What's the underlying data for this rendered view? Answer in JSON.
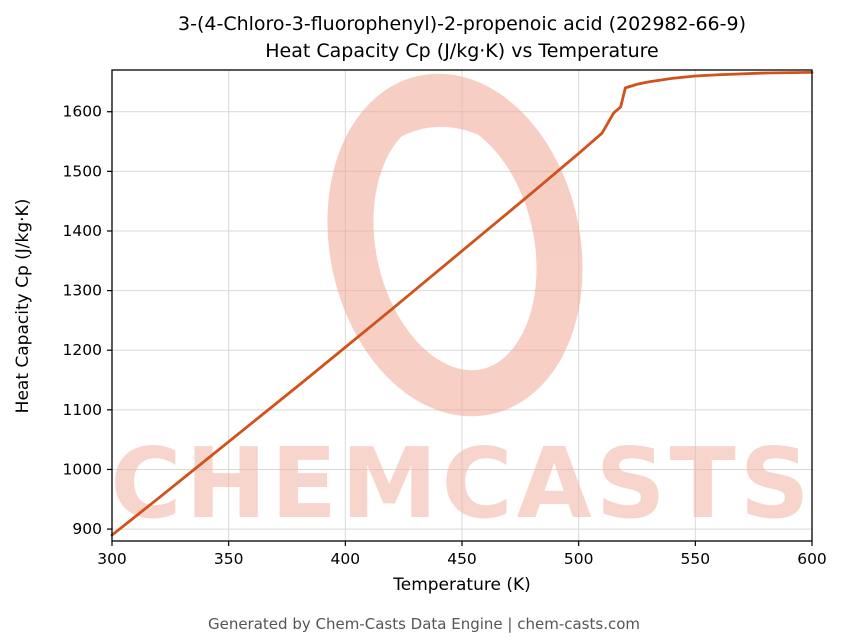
{
  "title": {
    "line1": "3-(4-Chloro-3-fluorophenyl)-2-propenoic acid (202982-66-9)",
    "line2": "Heat Capacity Cp (J/kg·K) vs Temperature"
  },
  "footer": {
    "text": "Generated by Chem-Casts Data Engine | chem-casts.com"
  },
  "watermark": {
    "text": "CHEMCASTS",
    "color": "#f2b4a4",
    "ring_color": "#f0a795"
  },
  "chart_data": {
    "type": "line",
    "title": "3-(4-Chloro-3-fluorophenyl)-2-propenoic acid (202982-66-9) Heat Capacity Cp (J/kg·K) vs Temperature",
    "xlabel": "Temperature (K)",
    "ylabel": "Heat Capacity Cp (J/kg·K)",
    "xlim": [
      300,
      600
    ],
    "ylim": [
      880,
      1670
    ],
    "xticks": [
      300,
      350,
      400,
      450,
      500,
      550,
      600
    ],
    "yticks": [
      900,
      1000,
      1100,
      1200,
      1300,
      1400,
      1500,
      1600
    ],
    "grid": true,
    "grid_color": "#d9d9d9",
    "line_color": "#d2521b",
    "legend": "none",
    "series": [
      {
        "name": "Heat Capacity Cp",
        "x": [
          300,
          320,
          340,
          360,
          380,
          400,
          420,
          440,
          460,
          480,
          500,
          510,
          515,
          518,
          520,
          525,
          530,
          540,
          550,
          560,
          580,
          600
        ],
        "y": [
          890,
          952,
          1015,
          1078,
          1141,
          1205,
          1269,
          1334,
          1399,
          1464,
          1530,
          1564,
          1598,
          1608,
          1640,
          1646,
          1650,
          1656,
          1660,
          1662,
          1665,
          1666
        ]
      }
    ]
  }
}
